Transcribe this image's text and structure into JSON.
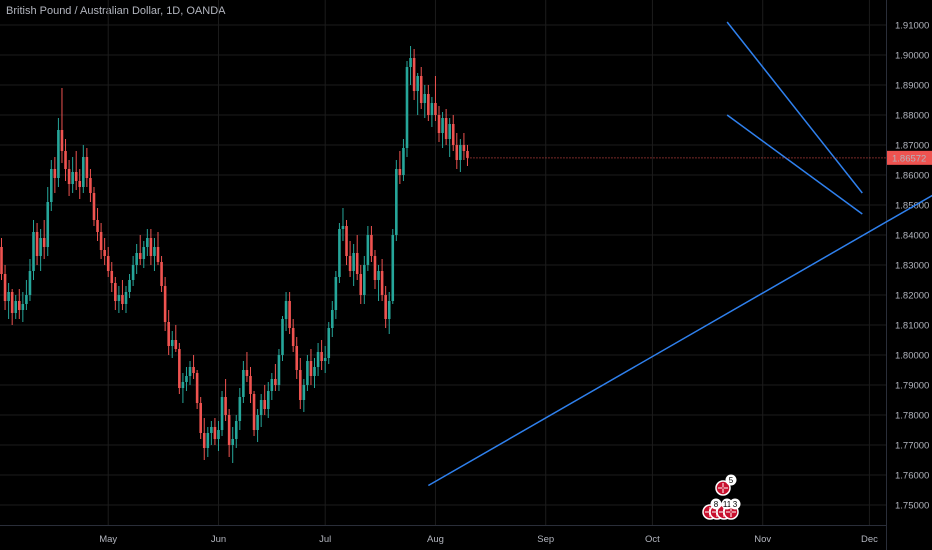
{
  "header": {
    "title": "British Pound / Australian Dollar, 1D, OANDA"
  },
  "colors": {
    "up": "#26a69a",
    "down": "#ef5350",
    "trendline": "#2f80ed",
    "grid": "#1c1c1c",
    "axis_text": "#b2b5be",
    "price_badge": "#ef5350"
  },
  "events": {
    "badges": [
      "5",
      "8",
      "11",
      "3"
    ],
    "icon": "uk-flag-icon"
  },
  "chart_data": {
    "type": "candlestick",
    "y_ticks": [
      "1.91000",
      "1.90000",
      "1.89000",
      "1.88000",
      "1.87000",
      "1.86000",
      "1.85000",
      "1.84000",
      "1.83000",
      "1.82000",
      "1.81000",
      "1.80000",
      "1.79000",
      "1.78000",
      "1.77000",
      "1.76000",
      "1.75000"
    ],
    "y_range": [
      1.7475,
      1.9155
    ],
    "x_labels": [
      "May",
      "Jun",
      "Jul",
      "Aug",
      "Sep",
      "Oct",
      "Nov",
      "Dec"
    ],
    "x_label_day_index": [
      30,
      61,
      91,
      122,
      153,
      183,
      214,
      244
    ],
    "last_price": "1.86572",
    "last_price_value": 1.86572,
    "candles": [
      [
        1.836,
        1.839,
        1.825,
        1.827
      ],
      [
        1.827,
        1.83,
        1.815,
        1.818
      ],
      [
        1.818,
        1.824,
        1.812,
        1.821
      ],
      [
        1.821,
        1.822,
        1.81,
        1.814
      ],
      [
        1.814,
        1.82,
        1.812,
        1.818
      ],
      [
        1.818,
        1.822,
        1.812,
        1.815
      ],
      [
        1.815,
        1.821,
        1.811,
        1.817
      ],
      [
        1.817,
        1.825,
        1.815,
        1.82
      ],
      [
        1.82,
        1.832,
        1.818,
        1.828
      ],
      [
        1.828,
        1.845,
        1.825,
        1.841
      ],
      [
        1.841,
        1.844,
        1.83,
        1.833
      ],
      [
        1.833,
        1.842,
        1.828,
        1.839
      ],
      [
        1.839,
        1.845,
        1.832,
        1.836
      ],
      [
        1.836,
        1.856,
        1.833,
        1.851
      ],
      [
        1.851,
        1.865,
        1.848,
        1.862
      ],
      [
        1.862,
        1.866,
        1.854,
        1.859
      ],
      [
        1.859,
        1.879,
        1.856,
        1.875
      ],
      [
        1.875,
        1.889,
        1.864,
        1.868
      ],
      [
        1.868,
        1.872,
        1.858,
        1.862
      ],
      [
        1.862,
        1.865,
        1.853,
        1.857
      ],
      [
        1.857,
        1.866,
        1.854,
        1.861
      ],
      [
        1.861,
        1.868,
        1.855,
        1.858
      ],
      [
        1.858,
        1.862,
        1.852,
        1.856
      ],
      [
        1.856,
        1.87,
        1.854,
        1.866
      ],
      [
        1.866,
        1.869,
        1.856,
        1.859
      ],
      [
        1.859,
        1.862,
        1.851,
        1.854
      ],
      [
        1.854,
        1.856,
        1.843,
        1.845
      ],
      [
        1.845,
        1.849,
        1.838,
        1.841
      ],
      [
        1.841,
        1.844,
        1.832,
        1.835
      ],
      [
        1.835,
        1.839,
        1.83,
        1.833
      ],
      [
        1.833,
        1.836,
        1.826,
        1.828
      ],
      [
        1.828,
        1.831,
        1.821,
        1.824
      ],
      [
        1.824,
        1.826,
        1.815,
        1.818
      ],
      [
        1.818,
        1.823,
        1.814,
        1.82
      ],
      [
        1.82,
        1.825,
        1.815,
        1.817
      ],
      [
        1.817,
        1.823,
        1.814,
        1.821
      ],
      [
        1.821,
        1.827,
        1.819,
        1.825
      ],
      [
        1.825,
        1.833,
        1.823,
        1.83
      ],
      [
        1.83,
        1.837,
        1.827,
        1.834
      ],
      [
        1.834,
        1.84,
        1.83,
        1.832
      ],
      [
        1.832,
        1.838,
        1.829,
        1.836
      ],
      [
        1.836,
        1.842,
        1.833,
        1.839
      ],
      [
        1.839,
        1.842,
        1.83,
        1.833
      ],
      [
        1.833,
        1.839,
        1.828,
        1.836
      ],
      [
        1.836,
        1.841,
        1.83,
        1.831
      ],
      [
        1.831,
        1.833,
        1.821,
        1.823
      ],
      [
        1.823,
        1.826,
        1.808,
        1.811
      ],
      [
        1.811,
        1.815,
        1.8,
        1.803
      ],
      [
        1.803,
        1.808,
        1.799,
        1.805
      ],
      [
        1.805,
        1.81,
        1.801,
        1.802
      ],
      [
        1.802,
        1.804,
        1.787,
        1.789
      ],
      [
        1.789,
        1.794,
        1.784,
        1.791
      ],
      [
        1.791,
        1.796,
        1.788,
        1.793
      ],
      [
        1.793,
        1.798,
        1.79,
        1.796
      ],
      [
        1.796,
        1.8,
        1.792,
        1.794
      ],
      [
        1.794,
        1.795,
        1.782,
        1.784
      ],
      [
        1.784,
        1.786,
        1.772,
        1.774
      ],
      [
        1.774,
        1.779,
        1.765,
        1.769
      ],
      [
        1.769,
        1.776,
        1.766,
        1.774
      ],
      [
        1.774,
        1.778,
        1.77,
        1.776
      ],
      [
        1.776,
        1.779,
        1.77,
        1.772
      ],
      [
        1.772,
        1.778,
        1.768,
        1.775
      ],
      [
        1.775,
        1.788,
        1.773,
        1.786
      ],
      [
        1.786,
        1.792,
        1.778,
        1.78
      ],
      [
        1.78,
        1.782,
        1.766,
        1.77
      ],
      [
        1.77,
        1.776,
        1.764,
        1.772
      ],
      [
        1.772,
        1.78,
        1.769,
        1.778
      ],
      [
        1.778,
        1.789,
        1.775,
        1.786
      ],
      [
        1.786,
        1.798,
        1.784,
        1.795
      ],
      [
        1.795,
        1.801,
        1.791,
        1.793
      ],
      [
        1.793,
        1.796,
        1.784,
        1.787
      ],
      [
        1.787,
        1.788,
        1.773,
        1.775
      ],
      [
        1.775,
        1.782,
        1.771,
        1.78
      ],
      [
        1.78,
        1.787,
        1.776,
        1.785
      ],
      [
        1.785,
        1.79,
        1.78,
        1.782
      ],
      [
        1.782,
        1.791,
        1.779,
        1.788
      ],
      [
        1.788,
        1.794,
        1.785,
        1.792
      ],
      [
        1.792,
        1.797,
        1.788,
        1.79
      ],
      [
        1.79,
        1.802,
        1.788,
        1.8
      ],
      [
        1.8,
        1.813,
        1.798,
        1.812
      ],
      [
        1.812,
        1.821,
        1.808,
        1.818
      ],
      [
        1.818,
        1.821,
        1.807,
        1.809
      ],
      [
        1.809,
        1.812,
        1.801,
        1.803
      ],
      [
        1.803,
        1.806,
        1.792,
        1.795
      ],
      [
        1.795,
        1.799,
        1.782,
        1.785
      ],
      [
        1.785,
        1.792,
        1.781,
        1.79
      ],
      [
        1.79,
        1.8,
        1.788,
        1.798
      ],
      [
        1.798,
        1.802,
        1.79,
        1.793
      ],
      [
        1.793,
        1.799,
        1.789,
        1.796
      ],
      [
        1.796,
        1.804,
        1.793,
        1.801
      ],
      [
        1.801,
        1.805,
        1.795,
        1.798
      ],
      [
        1.798,
        1.803,
        1.794,
        1.799
      ],
      [
        1.799,
        1.811,
        1.797,
        1.809
      ],
      [
        1.809,
        1.818,
        1.806,
        1.815
      ],
      [
        1.815,
        1.828,
        1.812,
        1.826
      ],
      [
        1.826,
        1.844,
        1.824,
        1.842
      ],
      [
        1.842,
        1.849,
        1.838,
        1.843
      ],
      [
        1.843,
        1.845,
        1.83,
        1.833
      ],
      [
        1.833,
        1.838,
        1.826,
        1.828
      ],
      [
        1.828,
        1.837,
        1.823,
        1.834
      ],
      [
        1.834,
        1.84,
        1.825,
        1.827
      ],
      [
        1.827,
        1.83,
        1.817,
        1.82
      ],
      [
        1.82,
        1.833,
        1.817,
        1.83
      ],
      [
        1.83,
        1.843,
        1.828,
        1.84
      ],
      [
        1.84,
        1.843,
        1.831,
        1.833
      ],
      [
        1.833,
        1.835,
        1.822,
        1.825
      ],
      [
        1.825,
        1.83,
        1.818,
        1.828
      ],
      [
        1.828,
        1.832,
        1.818,
        1.82
      ],
      [
        1.82,
        1.823,
        1.809,
        1.812
      ],
      [
        1.812,
        1.821,
        1.807,
        1.818
      ],
      [
        1.818,
        1.842,
        1.817,
        1.84
      ],
      [
        1.84,
        1.865,
        1.838,
        1.862
      ],
      [
        1.862,
        1.868,
        1.857,
        1.86
      ],
      [
        1.86,
        1.872,
        1.858,
        1.869
      ],
      [
        1.869,
        1.898,
        1.866,
        1.896
      ],
      [
        1.896,
        1.903,
        1.89,
        1.899
      ],
      [
        1.899,
        1.902,
        1.885,
        1.888
      ],
      [
        1.888,
        1.894,
        1.88,
        1.893
      ],
      [
        1.893,
        1.896,
        1.882,
        1.884
      ],
      [
        1.884,
        1.89,
        1.879,
        1.887
      ],
      [
        1.887,
        1.89,
        1.878,
        1.88
      ],
      [
        1.88,
        1.886,
        1.876,
        1.884
      ],
      [
        1.884,
        1.893,
        1.878,
        1.88
      ],
      [
        1.88,
        1.883,
        1.871,
        1.874
      ],
      [
        1.874,
        1.881,
        1.869,
        1.879
      ],
      [
        1.879,
        1.882,
        1.87,
        1.872
      ],
      [
        1.872,
        1.879,
        1.866,
        1.877
      ],
      [
        1.877,
        1.88,
        1.868,
        1.87
      ],
      [
        1.87,
        1.874,
        1.862,
        1.865
      ],
      [
        1.865,
        1.872,
        1.861,
        1.87
      ],
      [
        1.87,
        1.874,
        1.865,
        1.868
      ],
      [
        1.868,
        1.87,
        1.863,
        1.8657
      ]
    ],
    "trendlines": [
      {
        "from": [
          120,
          1.7565
        ],
        "to": [
          279,
          1.865
        ]
      },
      {
        "from": [
          204,
          1.911
        ],
        "to": [
          242,
          1.854
        ]
      },
      {
        "from": [
          204,
          1.88
        ],
        "to": [
          242,
          1.847
        ]
      }
    ]
  }
}
